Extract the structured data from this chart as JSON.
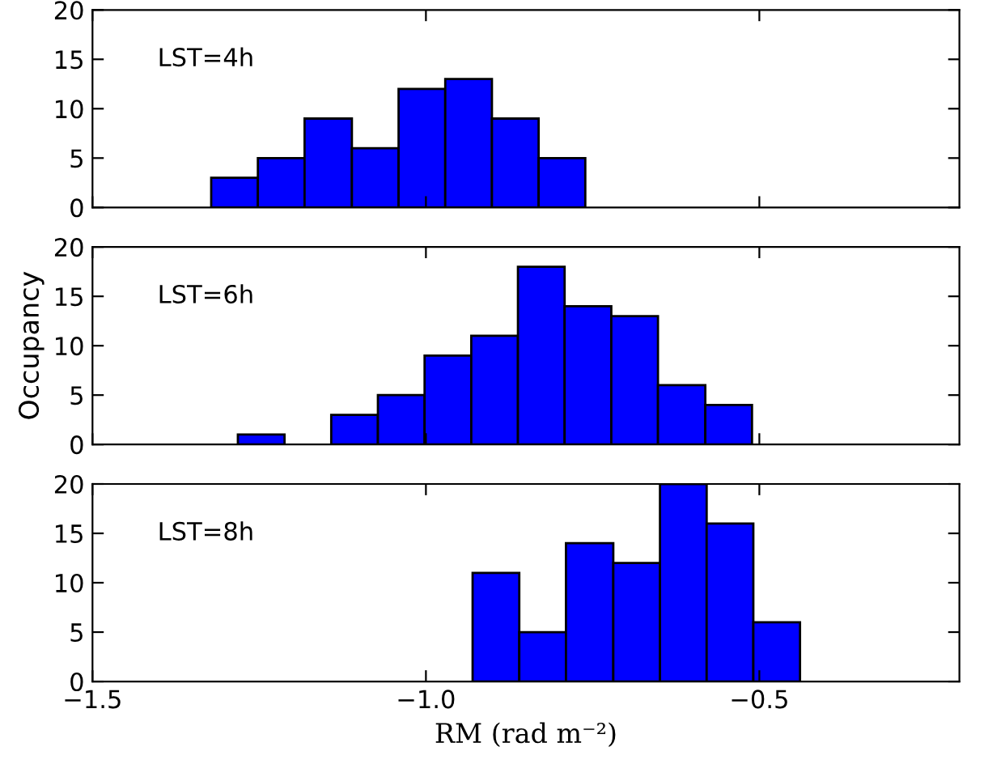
{
  "chart_data": [
    {
      "type": "histogram",
      "annotations": [
        "LST=4h"
      ],
      "bins": [
        -1.322,
        -1.252,
        -1.182,
        -1.111,
        -1.041,
        -0.971,
        -0.901,
        -0.831,
        -0.761
      ],
      "values": [
        3,
        5,
        9,
        6,
        12,
        13,
        9,
        5
      ],
      "color": "#0000ff",
      "xlim": [
        -1.5,
        -0.2
      ],
      "xticks": [
        -1.5,
        -1.0,
        -0.5
      ],
      "ylim": [
        0,
        20
      ],
      "yticks": [
        0,
        5,
        10,
        15,
        20
      ],
      "tick_labels": "y",
      "grid": false,
      "legend": false
    },
    {
      "type": "histogram",
      "annotations": [
        "LST=6h"
      ],
      "ylabel": "Occupancy",
      "bins": [
        -1.282,
        -1.212,
        -1.142,
        -1.072,
        -1.002,
        -0.932,
        -0.862,
        -0.792,
        -0.722,
        -0.652,
        -0.581,
        -0.511
      ],
      "values": [
        1,
        0,
        3,
        5,
        9,
        11,
        18,
        14,
        13,
        6,
        4
      ],
      "color": "#0000ff",
      "xlim": [
        -1.5,
        -0.2
      ],
      "xticks": [
        -1.5,
        -1.0,
        -0.5
      ],
      "ylim": [
        0,
        20
      ],
      "yticks": [
        0,
        5,
        10,
        15,
        20
      ],
      "tick_labels": "y",
      "grid": false,
      "legend": false
    },
    {
      "type": "histogram",
      "annotations": [
        "LST=8h"
      ],
      "xlabel": "RM (rad m⁻²)",
      "bins": [
        -0.93,
        -0.86,
        -0.79,
        -0.719,
        -0.649,
        -0.579,
        -0.509,
        -0.439
      ],
      "values": [
        11,
        5,
        14,
        12,
        20,
        16,
        6
      ],
      "color": "#0000ff",
      "xlim": [
        -1.5,
        -0.2
      ],
      "xticks": [
        {
          "value": -1.5,
          "label": "−1.5"
        },
        {
          "value": -1.0,
          "label": "−1.0"
        },
        {
          "value": -0.5,
          "label": "−0.5"
        }
      ],
      "ylim": [
        0,
        20
      ],
      "yticks": [
        0,
        5,
        10,
        15,
        20
      ],
      "grid": false,
      "legend": false
    }
  ]
}
